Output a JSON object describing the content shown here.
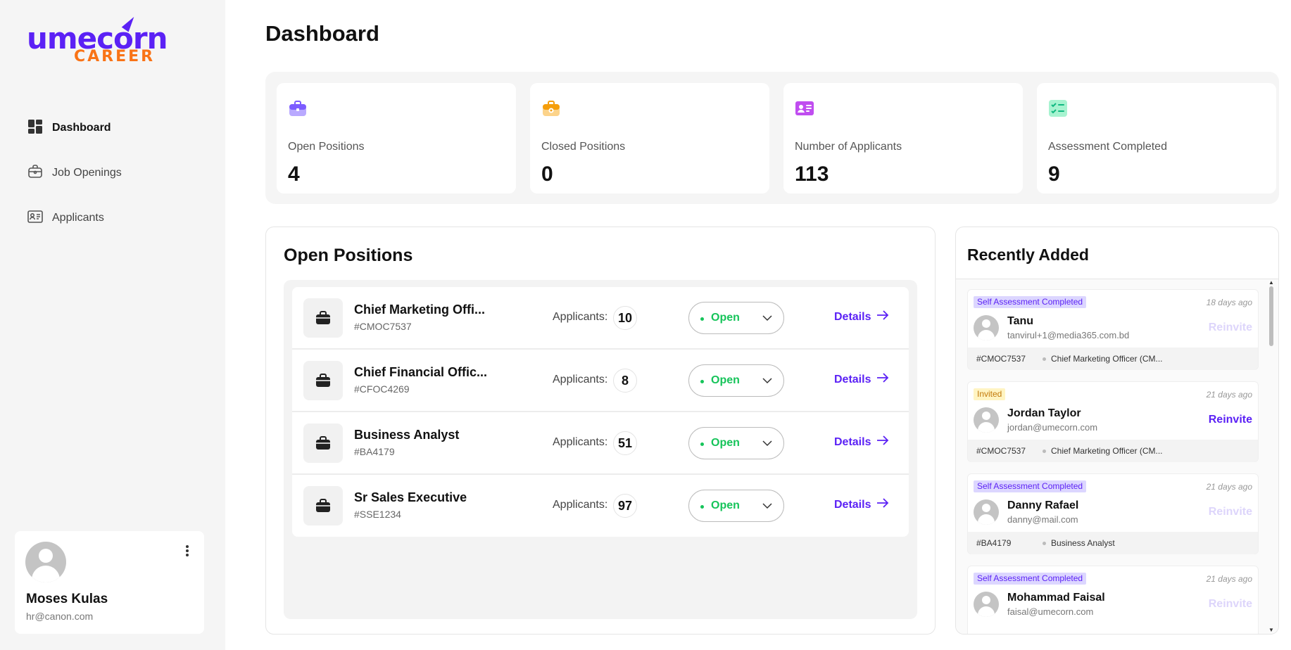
{
  "brand": {
    "name": "umecorn",
    "sub": "CAREER",
    "primary": "#5b21f5",
    "secondary": "#f97316"
  },
  "sidebar": {
    "items": [
      {
        "label": "Dashboard",
        "icon": "dashboard-grid-icon",
        "active": true
      },
      {
        "label": "Job Openings",
        "icon": "briefcase-icon",
        "active": false
      },
      {
        "label": "Applicants",
        "icon": "id-card-icon",
        "active": false
      }
    ],
    "user": {
      "name": "Moses Kulas",
      "email": "hr@canon.com"
    }
  },
  "page": {
    "title": "Dashboard"
  },
  "stats": [
    {
      "label": "Open Positions",
      "value": "4",
      "icon": "briefcase-icon",
      "color": "#7c5cff"
    },
    {
      "label": "Closed Positions",
      "value": "0",
      "icon": "locked-briefcase-icon",
      "color": "#f59e0b"
    },
    {
      "label": "Number of Applicants",
      "value": "113",
      "icon": "applicants-card-icon",
      "color": "#c04df0"
    },
    {
      "label": "Assessment Completed",
      "value": "9",
      "icon": "checklist-icon",
      "color": "#34d399"
    }
  ],
  "open_positions": {
    "title": "Open Positions",
    "applicants_label": "Applicants:",
    "details_label": "Details",
    "rows": [
      {
        "title": "Chief Marketing Offi...",
        "code": "#CMOC7537",
        "applicants": "10",
        "status": "Open"
      },
      {
        "title": "Chief Financial Offic...",
        "code": "#CFOC4269",
        "applicants": "8",
        "status": "Open"
      },
      {
        "title": "Business Analyst",
        "code": "#BA4179",
        "applicants": "51",
        "status": "Open"
      },
      {
        "title": "Sr Sales Executive",
        "code": "#SSE1234",
        "applicants": "97",
        "status": "Open"
      }
    ]
  },
  "recently_added": {
    "title": "Recently Added",
    "reinvite_label": "Reinvite",
    "items": [
      {
        "badge": "Self Assessment Completed",
        "badge_type": "assess",
        "time": "18 days ago",
        "name": "Tanu",
        "email": "tanvirul+1@media365.com.bd",
        "code": "#CMOC7537",
        "job": "Chief Marketing Officer (CM...",
        "reinvite_enabled": false
      },
      {
        "badge": "Invited",
        "badge_type": "invited",
        "time": "21 days ago",
        "name": "Jordan Taylor",
        "email": "jordan@umecorn.com",
        "code": "#CMOC7537",
        "job": "Chief Marketing Officer (CM...",
        "reinvite_enabled": true
      },
      {
        "badge": "Self Assessment Completed",
        "badge_type": "assess",
        "time": "21 days ago",
        "name": "Danny Rafael",
        "email": "danny@mail.com",
        "code": "#BA4179",
        "job": "Business Analyst",
        "reinvite_enabled": false
      },
      {
        "badge": "Self Assessment Completed",
        "badge_type": "assess",
        "time": "21 days ago",
        "name": "Mohammad Faisal",
        "email": "faisal@umecorn.com",
        "code": "",
        "job": "",
        "reinvite_enabled": false
      }
    ]
  }
}
